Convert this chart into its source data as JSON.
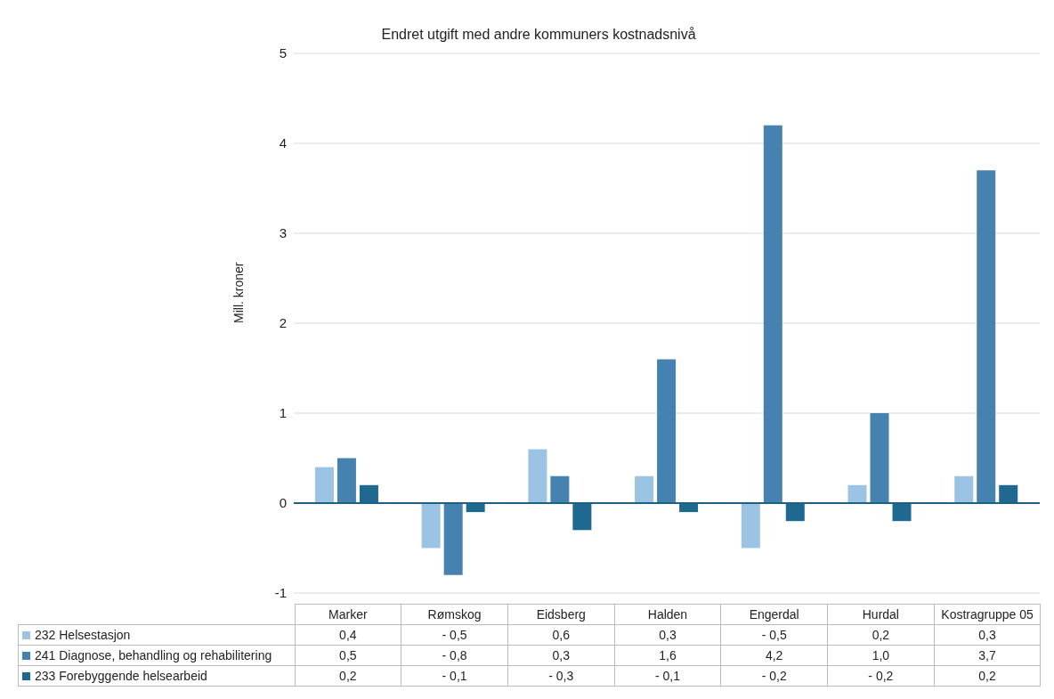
{
  "chart_data": {
    "type": "bar",
    "title": "Endret utgift  med andre kommuners kostnadsnivå",
    "ylabel": "Mill. kroner",
    "categories": [
      "Marker",
      "Rømskog",
      "Eidsberg",
      "Halden",
      "Engerdal",
      "Hurdal",
      "Kostragruppe 05"
    ],
    "series": [
      {
        "name": "232 Helsestasjon",
        "color": "#9bc3e3",
        "values": [
          0.4,
          -0.5,
          0.6,
          0.3,
          -0.5,
          0.2,
          0.3
        ],
        "value_labels": [
          "0,4",
          "- 0,5",
          "0,6",
          "0,3",
          "- 0,5",
          "0,2",
          "0,3"
        ]
      },
      {
        "name": "241 Diagnose, behandling og rehabilitering",
        "color": "#4682b0",
        "values": [
          0.5,
          -0.8,
          0.3,
          1.6,
          4.2,
          1.0,
          3.7
        ],
        "value_labels": [
          "0,5",
          "- 0,8",
          "0,3",
          "1,6",
          "4,2",
          "1,0",
          "3,7"
        ]
      },
      {
        "name": "233 Forebyggende helsearbeid",
        "color": "#1f6890",
        "values": [
          0.2,
          -0.1,
          -0.3,
          -0.1,
          -0.2,
          -0.2,
          0.2
        ],
        "value_labels": [
          "0,2",
          "- 0,1",
          "- 0,3",
          "- 0,1",
          "- 0,2",
          "- 0,2",
          "0,2"
        ]
      }
    ],
    "ylim": [
      -1,
      5
    ],
    "yticks": [
      -1,
      0,
      1,
      2,
      3,
      4,
      5
    ],
    "grid": "y",
    "legend": "bottom",
    "ref_lines": [
      {
        "axis": "y",
        "value": 0,
        "color": "#1f5f80"
      }
    ]
  }
}
